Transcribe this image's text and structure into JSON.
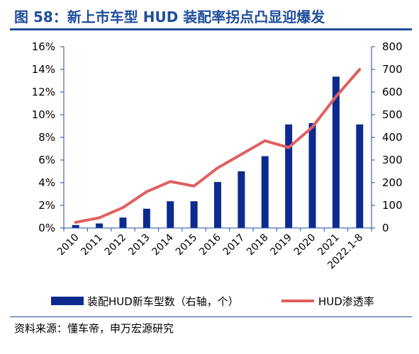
{
  "figure": {
    "title": "图 58：新上市车型 HUD 装配率拐点凸显迎爆发",
    "source": "资料来源：懂车帝，申万宏源研究"
  },
  "chart_data": {
    "type": "bar+line",
    "categories": [
      "2010",
      "2011",
      "2012",
      "2013",
      "2014",
      "2015",
      "2016",
      "2017",
      "2018",
      "2019",
      "2020",
      "2021",
      "2022.1-8"
    ],
    "series": [
      {
        "name": "装配HUD新车型数（右轴，个）",
        "type": "bar",
        "axis": "right",
        "color": "#0d2b8f",
        "values": [
          13,
          20,
          46,
          85,
          118,
          118,
          203,
          250,
          317,
          457,
          463,
          668,
          457
        ]
      },
      {
        "name": "HUD渗透率",
        "type": "line",
        "axis": "left",
        "color": "#e06060",
        "values": [
          0.5,
          0.9,
          1.8,
          3.2,
          4.1,
          3.7,
          5.3,
          6.5,
          7.7,
          7.1,
          8.9,
          11.6,
          14.0
        ]
      }
    ],
    "left_axis": {
      "ylim": [
        0,
        16
      ],
      "ticks": [
        0,
        2,
        4,
        6,
        8,
        10,
        12,
        14,
        16
      ],
      "tick_labels": [
        "0%",
        "2%",
        "4%",
        "6%",
        "8%",
        "10%",
        "12%",
        "14%",
        "16%"
      ]
    },
    "right_axis": {
      "ylim": [
        0,
        800
      ],
      "ticks": [
        0,
        100,
        200,
        300,
        400,
        500,
        600,
        700,
        800
      ],
      "tick_labels": [
        "0",
        "100",
        "200",
        "300",
        "400",
        "500",
        "600",
        "700",
        "800"
      ]
    },
    "grid": false,
    "legend": "bottom"
  }
}
